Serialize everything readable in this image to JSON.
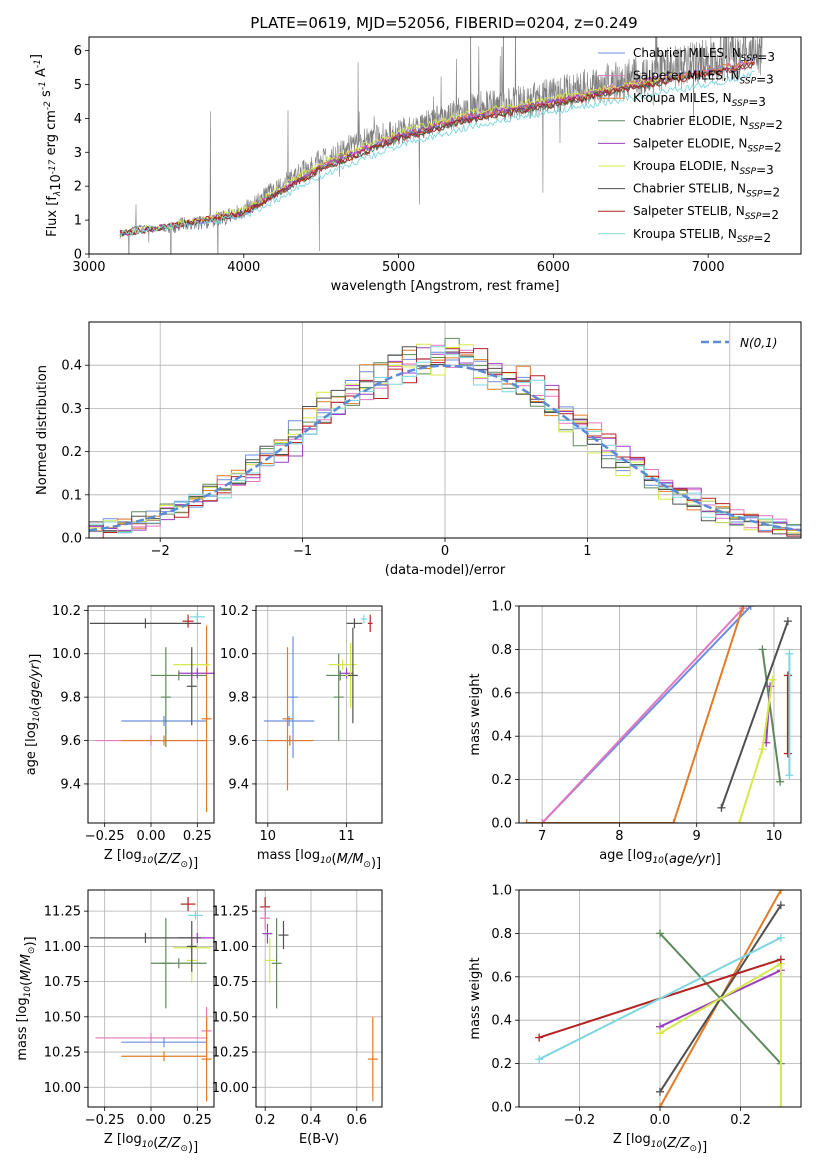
{
  "chart_data": [
    {
      "id": "spectrum",
      "type": "line",
      "title": "PLATE=0619, MJD=52056, FIBERID=0204, z=0.249",
      "xlabel": "wavelength [Angstrom, rest frame]",
      "ylabel": "Flux [f$_\\lambda$10$^{-17}$ erg cm$^{-2}$ s$^{-1}$ A$^{-1}$]",
      "xlim": [
        3000,
        7600
      ],
      "ylim": [
        0,
        6.4
      ],
      "xticks": [
        "3000",
        "4000",
        "5000",
        "6000",
        "7000"
      ],
      "yticks": [
        "0",
        "1",
        "2",
        "3",
        "4",
        "5",
        "6"
      ],
      "observed": {
        "color": "#808080",
        "x": [
          3200,
          3300,
          3400,
          3500,
          3600,
          3700,
          3800,
          3900,
          4000,
          4100,
          4200,
          4300,
          4400,
          4500,
          4600,
          4700,
          4800,
          4900,
          5000,
          5100,
          5200,
          5300,
          5400,
          5500,
          5600,
          5700,
          5800,
          5900,
          6000,
          6100,
          6200,
          6300,
          6400,
          6500,
          6600,
          6700,
          6800,
          6900,
          7000,
          7100,
          7200,
          7300
        ],
        "y": [
          0.5,
          0.8,
          0.8,
          0.7,
          0.9,
          0.9,
          1.0,
          1.1,
          1.3,
          1.6,
          1.9,
          2.2,
          2.5,
          2.8,
          3.0,
          3.2,
          3.4,
          3.5,
          3.6,
          3.7,
          3.9,
          4.0,
          4.2,
          4.3,
          4.4,
          4.4,
          4.5,
          4.6,
          4.7,
          4.8,
          4.9,
          5.0,
          5.1,
          5.2,
          5.3,
          5.4,
          5.5,
          5.6,
          5.7,
          5.8,
          5.9,
          6.0
        ]
      },
      "series": [
        {
          "name": "Chabrier MILES, N$_{SSP}$=3",
          "color": "#6a8fdc",
          "x": [
            3500,
            4000,
            4500,
            5000,
            5500,
            6000,
            6500,
            7000,
            7300
          ],
          "y": [
            0.8,
            1.2,
            2.6,
            3.5,
            4.1,
            4.5,
            5.0,
            5.4,
            5.7
          ]
        },
        {
          "name": "Salpeter MILES, N$_{SSP}$=3",
          "color": "#e377c2",
          "x": [
            3500,
            4000,
            4500,
            5000,
            5500,
            6000,
            6500,
            7000,
            7300
          ],
          "y": [
            0.8,
            1.2,
            2.6,
            3.5,
            4.1,
            4.5,
            5.0,
            5.4,
            5.7
          ]
        },
        {
          "name": "Kroupa MILES, N$_{SSP}$=3",
          "color": "#e07b28",
          "x": [
            3500,
            4000,
            4500,
            5000,
            5500,
            6000,
            6500,
            7000,
            7300
          ],
          "y": [
            0.8,
            1.2,
            2.6,
            3.5,
            4.1,
            4.5,
            5.0,
            5.4,
            5.7
          ]
        },
        {
          "name": "Chabrier ELODIE, N$_{SSP}$=2",
          "color": "#5e8a5e",
          "x": [
            3200,
            3500,
            4000,
            4500,
            5000,
            5500,
            6000,
            6500,
            6800
          ],
          "y": [
            0.6,
            0.8,
            1.2,
            2.5,
            3.4,
            4.0,
            4.4,
            4.9,
            5.2
          ]
        },
        {
          "name": "Salpeter ELODIE, N$_{SSP}$=2",
          "color": "#9b3fc0",
          "x": [
            3200,
            3500,
            4000,
            4500,
            5000,
            5500,
            6000,
            6500,
            6800
          ],
          "y": [
            0.6,
            0.8,
            1.2,
            2.6,
            3.5,
            4.1,
            4.5,
            5.0,
            5.3
          ]
        },
        {
          "name": "Kroupa ELODIE, N$_{SSP}$=3",
          "color": "#d4e84a",
          "x": [
            3200,
            3500,
            4000,
            4500,
            5000,
            5500,
            6000,
            6500,
            6800
          ],
          "y": [
            0.6,
            0.8,
            1.3,
            2.7,
            3.6,
            4.2,
            4.6,
            5.0,
            5.3
          ]
        },
        {
          "name": "Chabrier STELIB, N$_{SSP}$=2",
          "color": "#505050",
          "x": [
            3200,
            3500,
            4000,
            4500,
            5000,
            5500,
            6000,
            6500,
            7000,
            7300
          ],
          "y": [
            0.6,
            0.8,
            1.2,
            2.5,
            3.4,
            4.0,
            4.4,
            4.9,
            5.3,
            5.6
          ]
        },
        {
          "name": "Salpeter STELIB, N$_{SSP}$=2",
          "color": "#b22222",
          "x": [
            3200,
            3500,
            4000,
            4500,
            5000,
            5500,
            6000,
            6500,
            7000,
            7300
          ],
          "y": [
            0.6,
            0.8,
            1.2,
            2.5,
            3.4,
            4.0,
            4.4,
            4.9,
            5.3,
            5.6
          ]
        },
        {
          "name": "Kroupa STELIB, N$_{SSP}$=2",
          "color": "#7fd6e0",
          "x": [
            3200,
            3500,
            4000,
            4500,
            5000,
            5500,
            6000,
            6500,
            7000,
            7300
          ],
          "y": [
            0.6,
            0.8,
            1.1,
            2.3,
            3.2,
            3.8,
            4.2,
            4.6,
            5.0,
            5.3
          ]
        }
      ],
      "legend": "top-right"
    },
    {
      "id": "residuals",
      "type": "line",
      "xlabel": "(data-model)/error",
      "ylabel": "Normed distribution",
      "xlim": [
        -2.5,
        2.5
      ],
      "ylim": [
        0,
        0.5
      ],
      "xticks": [
        "−2",
        "−1",
        "0",
        "1",
        "2"
      ],
      "yticks": [
        "0.0",
        "0.1",
        "0.2",
        "0.3",
        "0.4"
      ],
      "grid": true,
      "legend": "top-right",
      "reference": {
        "name": "$\\mathcal{N}(0,1)$",
        "color": "#5b8ad6"
      }
    },
    {
      "id": "age-vs-Z",
      "type": "scatter",
      "xlabel": "Z [log$_{10}$($Z/Z_\\odot$)]",
      "ylabel": "age  [log$_{10}$($age/yr$)]",
      "xlim": [
        -0.34,
        0.34
      ],
      "ylim": [
        9.22,
        10.22
      ],
      "xticks": [
        "−0.25",
        "0.00",
        "0.25"
      ],
      "yticks": [
        "9.4",
        "9.6",
        "9.8",
        "10.0",
        "10.2"
      ],
      "grid": true,
      "points": [
        {
          "color": "#6a8fdc",
          "x": 0.07,
          "xerr": 0.23,
          "y": 9.69,
          "yerr": 0.0
        },
        {
          "color": "#e377c2",
          "x": 0.0,
          "xerr": 0.3,
          "y": 9.6,
          "yerr": 0.0
        },
        {
          "color": "#e07b28",
          "x": 0.07,
          "xerr": 0.23,
          "y": 9.6,
          "yerr": 0.0
        },
        {
          "color": "#e07b28",
          "x": 0.3,
          "xerr": 0.0,
          "y": 9.7,
          "yerr": 0.43
        },
        {
          "color": "#5e8a5e",
          "x": 0.08,
          "xerr": 0.0,
          "y": 9.8,
          "yerr": 0.23
        },
        {
          "color": "#5e8a5e",
          "x": 0.15,
          "xerr": 0.15,
          "y": 9.9,
          "yerr": 0.0
        },
        {
          "color": "#9b3fc0",
          "x": 0.25,
          "xerr": 0.1,
          "y": 9.91,
          "yerr": 0.0
        },
        {
          "color": "#d4e84a",
          "x": 0.22,
          "xerr": 0.1,
          "y": 9.95,
          "yerr": 0.0
        },
        {
          "color": "#505050",
          "x": -0.03,
          "xerr": 0.3,
          "y": 10.14,
          "yerr": 0.0
        },
        {
          "color": "#505050",
          "x": 0.22,
          "xerr": 0.0,
          "y": 9.85,
          "yerr": 0.18
        },
        {
          "color": "#b22222",
          "x": 0.2,
          "xerr": 0.03,
          "y": 10.15,
          "yerr": 0.03
        },
        {
          "color": "#7fd6e0",
          "x": 0.25,
          "xerr": 0.04,
          "y": 10.17,
          "yerr": 0.02
        }
      ]
    },
    {
      "id": "age-vs-mass",
      "type": "scatter",
      "xlabel": "mass [log$_{10}$($M/M_\\odot$)]",
      "ylabel": "",
      "xlim": [
        9.85,
        11.45
      ],
      "ylim": [
        9.22,
        10.22
      ],
      "xticks": [
        "10",
        "11"
      ],
      "yticks": [
        "9.4",
        "9.6",
        "9.8",
        "10.0",
        "10.2"
      ],
      "grid": true,
      "points": [
        {
          "color": "#6a8fdc",
          "x": 10.27,
          "xerr": 0.32,
          "y": 9.69,
          "yerr": 0.0
        },
        {
          "color": "#6a8fdc",
          "x": 10.32,
          "xerr": 0.0,
          "y": 9.8,
          "yerr": 0.28
        },
        {
          "color": "#e377c2",
          "x": 10.28,
          "xerr": 0.28,
          "y": 9.6,
          "yerr": 0.0
        },
        {
          "color": "#e07b28",
          "x": 10.28,
          "xerr": 0.3,
          "y": 9.6,
          "yerr": 0.0
        },
        {
          "color": "#e07b28",
          "x": 10.25,
          "xerr": 0.0,
          "y": 9.7,
          "yerr": 0.33
        },
        {
          "color": "#5e8a5e",
          "x": 10.9,
          "xerr": 0.0,
          "y": 9.8,
          "yerr": 0.2
        },
        {
          "color": "#5e8a5e",
          "x": 10.92,
          "xerr": 0.18,
          "y": 9.9,
          "yerr": 0.0
        },
        {
          "color": "#9b3fc0",
          "x": 11.0,
          "xerr": 0.09,
          "y": 9.91,
          "yerr": 0.0
        },
        {
          "color": "#d4e84a",
          "x": 10.95,
          "xerr": 0.18,
          "y": 9.95,
          "yerr": 0.0
        },
        {
          "color": "#d4e84a",
          "x": 11.05,
          "xerr": 0.0,
          "y": 9.9,
          "yerr": 0.15
        },
        {
          "color": "#505050",
          "x": 11.1,
          "xerr": 0.1,
          "y": 10.14,
          "yerr": 0.0
        },
        {
          "color": "#505050",
          "x": 11.08,
          "xerr": 0.0,
          "y": 9.9,
          "yerr": 0.22
        },
        {
          "color": "#b22222",
          "x": 11.3,
          "xerr": 0.03,
          "y": 10.14,
          "yerr": 0.04
        },
        {
          "color": "#7fd6e0",
          "x": 11.22,
          "xerr": 0.04,
          "y": 10.16,
          "yerr": 0.02
        }
      ]
    },
    {
      "id": "mass-weight-vs-age",
      "type": "line",
      "xlabel": "age  [log$_{10}$($age/yr$)]",
      "ylabel": "mass weight",
      "xlim": [
        6.7,
        10.35
      ],
      "ylim": [
        0,
        1
      ],
      "xticks": [
        "7",
        "8",
        "9",
        "10"
      ],
      "yticks": [
        "0.0",
        "0.2",
        "0.4",
        "0.6",
        "0.8",
        "1.0"
      ],
      "grid": true,
      "series": [
        {
          "color": "#6a8fdc",
          "x": [
            7.0,
            9.7
          ],
          "y": [
            0.0,
            1.0
          ]
        },
        {
          "color": "#e377c2",
          "x": [
            7.0,
            9.6
          ],
          "y": [
            0.0,
            0.99
          ]
        },
        {
          "color": "#e07b28",
          "x": [
            6.8,
            8.7,
            9.6
          ],
          "y": [
            0.0,
            0.0,
            1.0
          ]
        },
        {
          "color": "#5e8a5e",
          "x": [
            9.85,
            10.08
          ],
          "y": [
            0.8,
            0.19
          ]
        },
        {
          "color": "#9b3fc0",
          "x": [
            9.9,
            9.95
          ],
          "y": [
            0.37,
            0.63
          ]
        },
        {
          "color": "#d4e84a",
          "x": [
            9.55,
            9.85,
            9.98
          ],
          "y": [
            0.0,
            0.34,
            0.66
          ]
        },
        {
          "color": "#505050",
          "x": [
            9.32,
            10.18
          ],
          "y": [
            0.07,
            0.93
          ]
        },
        {
          "color": "#b22222",
          "x": [
            10.18,
            10.18
          ],
          "y": [
            0.32,
            0.68
          ]
        },
        {
          "color": "#7fd6e0",
          "x": [
            10.2,
            10.2
          ],
          "y": [
            0.22,
            0.78
          ]
        }
      ]
    },
    {
      "id": "mass-vs-Z",
      "type": "scatter",
      "xlabel": "Z [log$_{10}$($Z/Z_\\odot$)]",
      "ylabel": "mass [log$_{10}$($M/M_\\odot$)]",
      "xlim": [
        -0.34,
        0.34
      ],
      "ylim": [
        9.86,
        11.4
      ],
      "xticks": [
        "−0.25",
        "0.00",
        "0.25"
      ],
      "yticks": [
        "10.00",
        "10.25",
        "10.50",
        "10.75",
        "11.00",
        "11.25"
      ],
      "grid": true,
      "points": [
        {
          "color": "#6a8fdc",
          "x": 0.07,
          "xerr": 0.23,
          "y": 10.32,
          "yerr": 0.0
        },
        {
          "color": "#e377c2",
          "x": 0.0,
          "xerr": 0.3,
          "y": 10.35,
          "yerr": 0.0
        },
        {
          "color": "#e377c2",
          "x": 0.3,
          "xerr": 0.0,
          "y": 10.4,
          "yerr": 0.17
        },
        {
          "color": "#e07b28",
          "x": 0.07,
          "xerr": 0.23,
          "y": 10.22,
          "yerr": 0.0
        },
        {
          "color": "#e07b28",
          "x": 0.3,
          "xerr": 0.0,
          "y": 10.2,
          "yerr": 0.3
        },
        {
          "color": "#5e8a5e",
          "x": 0.15,
          "xerr": 0.15,
          "y": 10.88,
          "yerr": 0.0
        },
        {
          "color": "#5e8a5e",
          "x": 0.08,
          "xerr": 0.0,
          "y": 10.88,
          "yerr": 0.32
        },
        {
          "color": "#9b3fc0",
          "x": 0.25,
          "xerr": 0.1,
          "y": 11.06,
          "yerr": 0.0
        },
        {
          "color": "#d4e84a",
          "x": 0.22,
          "xerr": 0.1,
          "y": 10.99,
          "yerr": 0.0
        },
        {
          "color": "#d4e84a",
          "x": 0.22,
          "xerr": 0.0,
          "y": 10.9,
          "yerr": 0.16
        },
        {
          "color": "#505050",
          "x": -0.03,
          "xerr": 0.3,
          "y": 11.06,
          "yerr": 0.0
        },
        {
          "color": "#505050",
          "x": 0.22,
          "xerr": 0.0,
          "y": 11.0,
          "yerr": 0.18
        },
        {
          "color": "#b22222",
          "x": 0.2,
          "xerr": 0.04,
          "y": 11.3,
          "yerr": 0.05
        },
        {
          "color": "#7fd6e0",
          "x": 0.24,
          "xerr": 0.04,
          "y": 11.22,
          "yerr": 0.03
        }
      ]
    },
    {
      "id": "mass-vs-EBV",
      "type": "scatter",
      "xlabel": "E(B-V)",
      "ylabel": "",
      "xlim": [
        0.16,
        0.71
      ],
      "ylim": [
        9.86,
        11.4
      ],
      "xticks": [
        "0.2",
        "0.4",
        "0.6"
      ],
      "yticks": [
        "10.00",
        "10.25",
        "10.50",
        "10.75",
        "11.00",
        "11.25"
      ],
      "grid": true,
      "points": [
        {
          "color": "#b22222",
          "x": 0.2,
          "xerr": 0.0,
          "y": 11.28,
          "yerr": 0.07
        },
        {
          "color": "#e377c2",
          "x": 0.2,
          "xerr": 0.0,
          "y": 11.2,
          "yerr": 0.08
        },
        {
          "color": "#9b3fc0",
          "x": 0.21,
          "xerr": 0.0,
          "y": 11.09,
          "yerr": 0.07
        },
        {
          "color": "#d4e84a",
          "x": 0.22,
          "xerr": 0.0,
          "y": 10.9,
          "yerr": 0.16
        },
        {
          "color": "#505050",
          "x": 0.28,
          "xerr": 0.0,
          "y": 11.08,
          "yerr": 0.1
        },
        {
          "color": "#5e8a5e",
          "x": 0.25,
          "xerr": 0.0,
          "y": 10.88,
          "yerr": 0.32
        },
        {
          "color": "#e07b28",
          "x": 0.67,
          "xerr": 0.0,
          "y": 10.2,
          "yerr": 0.3
        }
      ]
    },
    {
      "id": "mass-weight-vs-Z",
      "type": "line",
      "xlabel": "Z [log$_{10}$($Z/Z_\\odot$)]",
      "ylabel": "mass weight",
      "xlim": [
        -0.35,
        0.35
      ],
      "ylim": [
        0,
        1
      ],
      "xticks": [
        "−0.2",
        "0.0",
        "0.2"
      ],
      "yticks": [
        "0.0",
        "0.2",
        "0.4",
        "0.6",
        "0.8",
        "1.0"
      ],
      "grid": true,
      "series": [
        {
          "color": "#e07b28",
          "x": [
            0.0,
            0.3
          ],
          "y": [
            0.0,
            1.0
          ]
        },
        {
          "color": "#505050",
          "x": [
            0.0,
            0.3
          ],
          "y": [
            0.07,
            0.93
          ]
        },
        {
          "color": "#5e8a5e",
          "x": [
            0.0,
            0.3
          ],
          "y": [
            0.8,
            0.2
          ]
        },
        {
          "color": "#9b3fc0",
          "x": [
            0.0,
            0.3
          ],
          "y": [
            0.37,
            0.63
          ]
        },
        {
          "color": "#d4e84a",
          "x": [
            0.0,
            0.3,
            0.3
          ],
          "y": [
            0.34,
            0.66,
            0.0
          ]
        },
        {
          "color": "#b22222",
          "x": [
            -0.3,
            0.3
          ],
          "y": [
            0.32,
            0.68
          ]
        },
        {
          "color": "#7fd6e0",
          "x": [
            -0.3,
            0.3
          ],
          "y": [
            0.22,
            0.78
          ]
        }
      ]
    }
  ]
}
